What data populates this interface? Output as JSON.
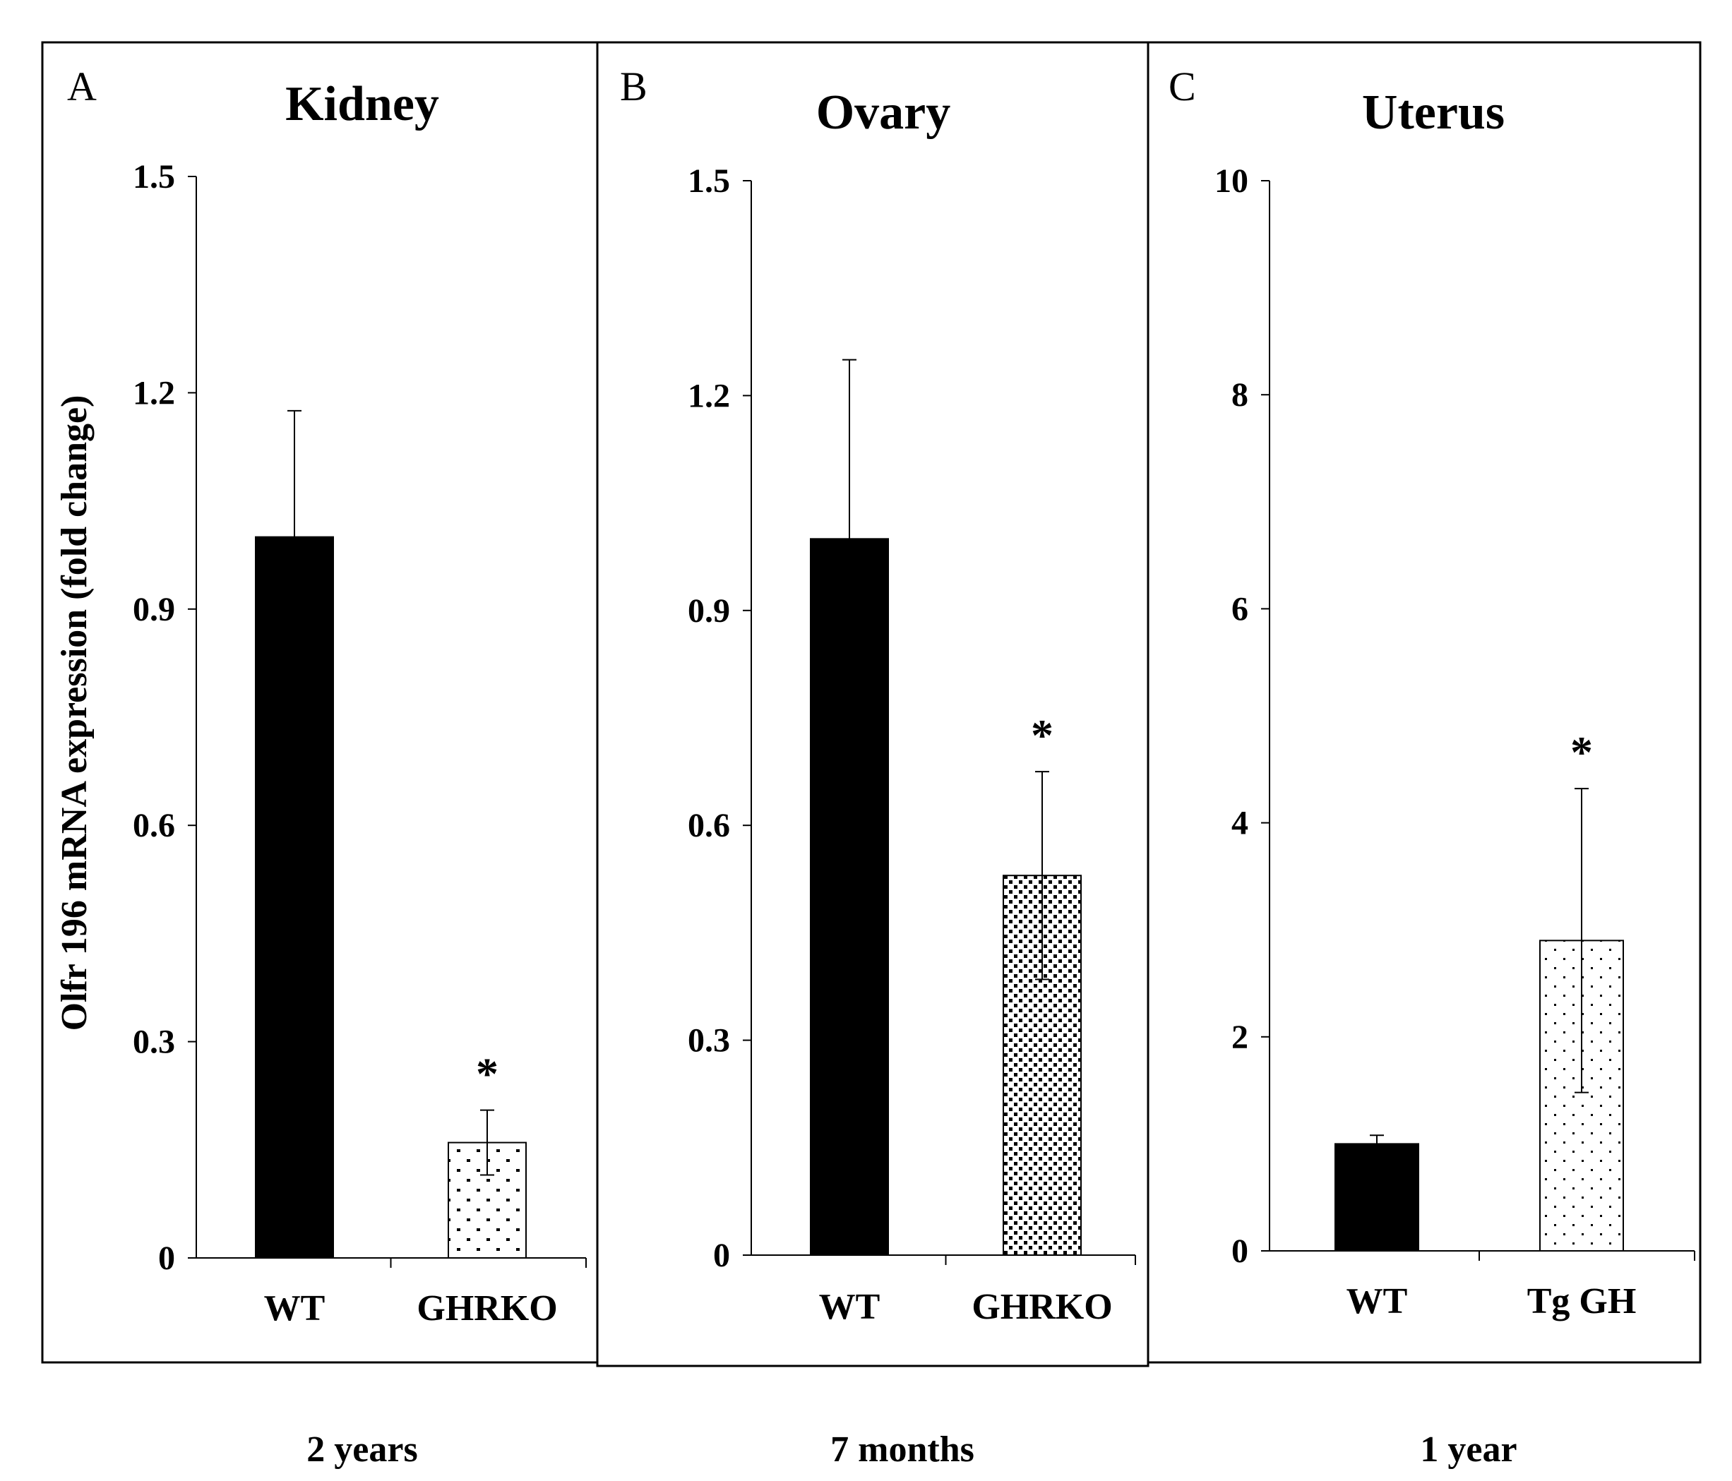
{
  "figure": {
    "ylabel": "Olfr 196 mRNA expression (fold change)"
  },
  "chart_data": [
    {
      "type": "bar",
      "panel": "A",
      "title": "Kidney",
      "age": "2 years",
      "ylabel": "Olfr 196 mRNA expression (fold change)",
      "ylim": [
        0,
        1.5
      ],
      "yticks": [
        0,
        0.3,
        0.6,
        0.9,
        1.2,
        1.5
      ],
      "ytick_labels": [
        "0",
        "0.3",
        "0.6",
        "0.9",
        "1.2",
        "1.5"
      ],
      "categories": [
        "WT",
        "GHRKO"
      ],
      "values": [
        1.0,
        0.16
      ],
      "errors": [
        0.175,
        0.045
      ],
      "significance": [
        "",
        "*"
      ],
      "fills": [
        "solid",
        "dots-sparse"
      ]
    },
    {
      "type": "bar",
      "panel": "B",
      "title": "Ovary",
      "age": "7 months",
      "ylabel": "",
      "ylim": [
        0,
        1.5
      ],
      "yticks": [
        0,
        0.3,
        0.6,
        0.9,
        1.2,
        1.5
      ],
      "ytick_labels": [
        "0",
        "0.3",
        "0.6",
        "0.9",
        "1.2",
        "1.5"
      ],
      "categories": [
        "WT",
        "GHRKO"
      ],
      "values": [
        1.0,
        0.53
      ],
      "errors": [
        0.25,
        0.145
      ],
      "significance": [
        "",
        "*"
      ],
      "fills": [
        "solid",
        "dots-dense"
      ]
    },
    {
      "type": "bar",
      "panel": "C",
      "title": "Uterus",
      "age": "1 year",
      "ylabel": "",
      "ylim": [
        0,
        10
      ],
      "yticks": [
        0,
        2,
        4,
        6,
        8,
        10
      ],
      "ytick_labels": [
        "0",
        "2",
        "4",
        "6",
        "8",
        "10"
      ],
      "categories": [
        "WT",
        "Tg GH"
      ],
      "values": [
        1.0,
        2.9
      ],
      "errors": [
        0.08,
        1.42
      ],
      "significance": [
        "",
        "*"
      ],
      "fills": [
        "solid",
        "dots-fine"
      ]
    }
  ]
}
